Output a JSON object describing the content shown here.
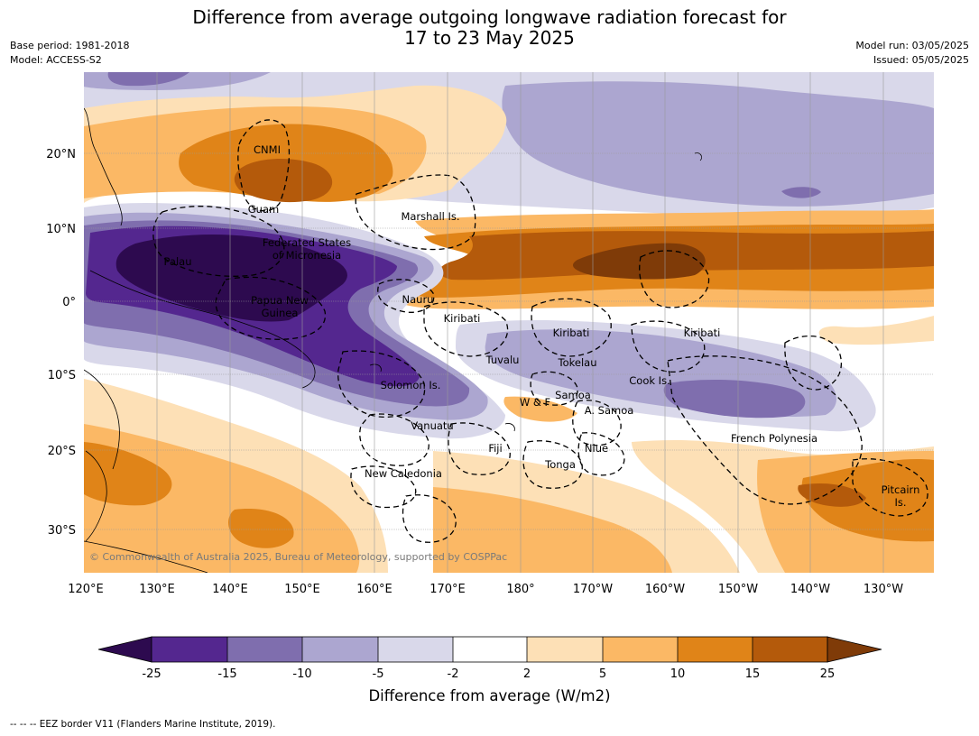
{
  "title": {
    "line1": "Difference from average outgoing longwave radiation forecast for",
    "line2": "17 to 23 May 2025"
  },
  "meta": {
    "base_period": "Base period: 1981-2018",
    "model": "Model: ACCESS-S2",
    "model_run": "Model run: 03/05/2025",
    "issued": "Issued: 05/05/2025"
  },
  "map": {
    "lon_ticks": [
      "120°E",
      "130°E",
      "140°E",
      "150°E",
      "160°E",
      "170°E",
      "180°",
      "170°W",
      "160°W",
      "150°W",
      "140°W",
      "130°W"
    ],
    "lat_ticks": [
      "20°N",
      "10°N",
      "0°",
      "10°S",
      "20°S",
      "30°S"
    ],
    "labels": {
      "cnmi": "CNMI",
      "guam": "Guam",
      "marshall": "Marshall Is.",
      "fsm1": "Federated States",
      "fsm2": "of Micronesia",
      "palau": "Palau",
      "png1": "Papua New",
      "png2": "Guinea",
      "nauru": "Nauru",
      "kiribati_w": "Kiribati",
      "kiribati_c": "Kiribati",
      "kiribati_e": "Kiribati",
      "tuvalu": "Tuvalu",
      "tokelau": "Tokelau",
      "cook": "Cook Is.",
      "solomon": "Solomon Is.",
      "samoa": "Samoa",
      "wf": "W & F",
      "asamoa": "A. Samoa",
      "vanuatu": "Vanuatu",
      "fiji": "Fiji",
      "niue": "Niue",
      "frpoly": "French Polynesia",
      "tonga": "Tonga",
      "newcal": "New Caledonia",
      "pitcairn1": "Pitcairn",
      "pitcairn2": "Is."
    },
    "copyright": "© Commonwealth of Australia 2025, Bureau of Meteorology, supported by COSPPac"
  },
  "colorbar": {
    "ticks": [
      "-25",
      "-15",
      "-10",
      "-5",
      "-2",
      "2",
      "5",
      "10",
      "15",
      "25"
    ],
    "colors": {
      "lt_neg25": "#2d0a4f",
      "n25_15": "#54278f",
      "n15_10": "#7f6eae",
      "n10_5": "#aca6d0",
      "n5_2": "#d9d8ea",
      "n2_2": "#ffffff",
      "p2_5": "#fde0b6",
      "p5_10": "#fbb865",
      "p10_15": "#e08418",
      "p15_25": "#b45a0b",
      "gt_25": "#7f3b08"
    },
    "label": "Difference from average (W/m2)"
  },
  "footer": "--  --  -- EEZ border V11 (Flanders Marine Institute, 2019)."
}
